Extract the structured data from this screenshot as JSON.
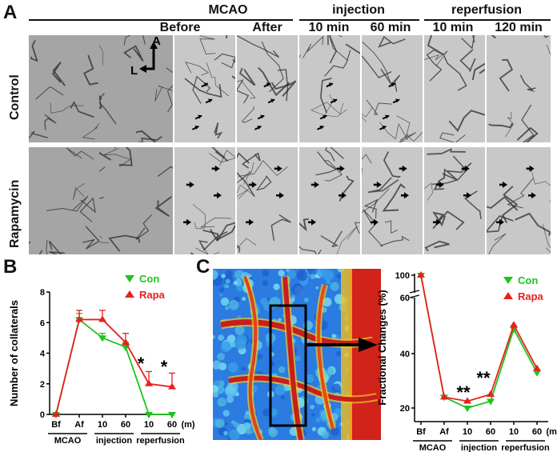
{
  "panel_a": {
    "letter": "A",
    "headers": {
      "mcao": "MCAO",
      "injection": "injection",
      "reperfusion": "reperfusion",
      "before": "Before",
      "after": "After",
      "inj10": "10 min",
      "inj60": "60 min",
      "rep10": "10 min",
      "rep120": "120 min"
    },
    "rows": {
      "control": "Control",
      "rapamycin": "Rapamycin"
    },
    "orientation": {
      "a": "A",
      "l": "L"
    }
  },
  "panel_b": {
    "letter": "B",
    "chart_data": {
      "type": "line",
      "ylabel": "Number of collaterals",
      "ylim": [
        0,
        8
      ],
      "yticks": [
        "0",
        "2",
        "4",
        "6",
        "8"
      ],
      "categories": [
        "Bf",
        "Af",
        "10",
        "60",
        "10",
        "60"
      ],
      "unit_label": "(m)",
      "groups": [
        "MCAO",
        "injection",
        "reperfusion"
      ],
      "series": [
        {
          "name": "Con",
          "color": "#1ec31e",
          "marker": "triangle-down",
          "values": [
            0,
            6.2,
            5.0,
            4.4,
            0,
            0
          ],
          "errors": [
            0,
            0.4,
            0.3,
            0.3,
            0,
            0
          ]
        },
        {
          "name": "Rapa",
          "color": "#e8201c",
          "marker": "triangle-up",
          "values": [
            0,
            6.2,
            6.2,
            4.7,
            2.0,
            1.8
          ],
          "errors": [
            0,
            0.6,
            0.6,
            0.6,
            0.8,
            0.9
          ]
        }
      ],
      "annotations": [
        "*",
        "*"
      ]
    }
  },
  "panel_c": {
    "letter": "C",
    "chart_data": {
      "type": "line",
      "ylabel": "Fractional Changes (%)",
      "yticks": [
        "20",
        "40",
        "60",
        "100"
      ],
      "categories": [
        "Bf",
        "Af",
        "10",
        "60",
        "10",
        "60"
      ],
      "unit_label": "(m)",
      "groups": [
        "MCAO",
        "injection",
        "reperfusion"
      ],
      "series": [
        {
          "name": "Con",
          "color": "#1ec31e",
          "marker": "triangle-down",
          "values": [
            100,
            24,
            20,
            22.5,
            49,
            33
          ]
        },
        {
          "name": "Rapa",
          "color": "#e8201c",
          "marker": "triangle-up",
          "values": [
            100,
            24,
            22.5,
            25,
            50.5,
            34.5
          ]
        }
      ],
      "annotations": [
        "**",
        "**"
      ]
    }
  }
}
